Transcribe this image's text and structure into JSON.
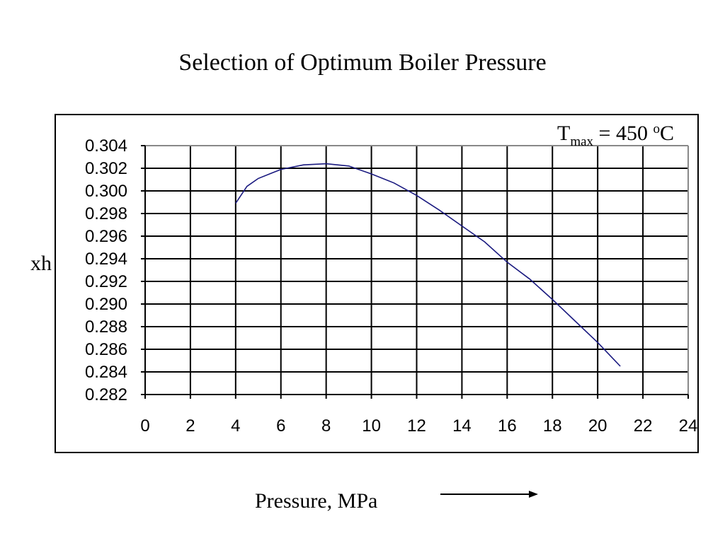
{
  "chart_data": {
    "type": "line",
    "title": "Selection of Optimum Boiler Pressure",
    "xlabel": "Pressure, MPa",
    "ylabel": "xh",
    "annotation": {
      "main": "T",
      "subscript": "max",
      "equals": "= 450",
      "superscript": "o",
      "unit": "C"
    },
    "xlim": [
      0,
      24
    ],
    "ylim": [
      0.282,
      0.304
    ],
    "xticks": [
      "0",
      "2",
      "4",
      "6",
      "8",
      "10",
      "12",
      "14",
      "16",
      "18",
      "20",
      "22",
      "24"
    ],
    "yticks": [
      "0.282",
      "0.284",
      "0.286",
      "0.288",
      "0.290",
      "0.292",
      "0.294",
      "0.296",
      "0.298",
      "0.300",
      "0.302",
      "0.304"
    ],
    "grid": true,
    "line_color": "#1a1a80",
    "series": [
      {
        "x": [
          4,
          4.5,
          5,
          6,
          7,
          8,
          9,
          10,
          11,
          12,
          13,
          14,
          15,
          16,
          17,
          18,
          19,
          20,
          21
        ],
        "y": [
          0.2989,
          0.3004,
          0.3011,
          0.3019,
          0.3023,
          0.3024,
          0.3022,
          0.3015,
          0.3007,
          0.2996,
          0.2983,
          0.2969,
          0.2955,
          0.2937,
          0.2922,
          0.2904,
          0.2885,
          0.2866,
          0.2845
        ]
      }
    ]
  }
}
